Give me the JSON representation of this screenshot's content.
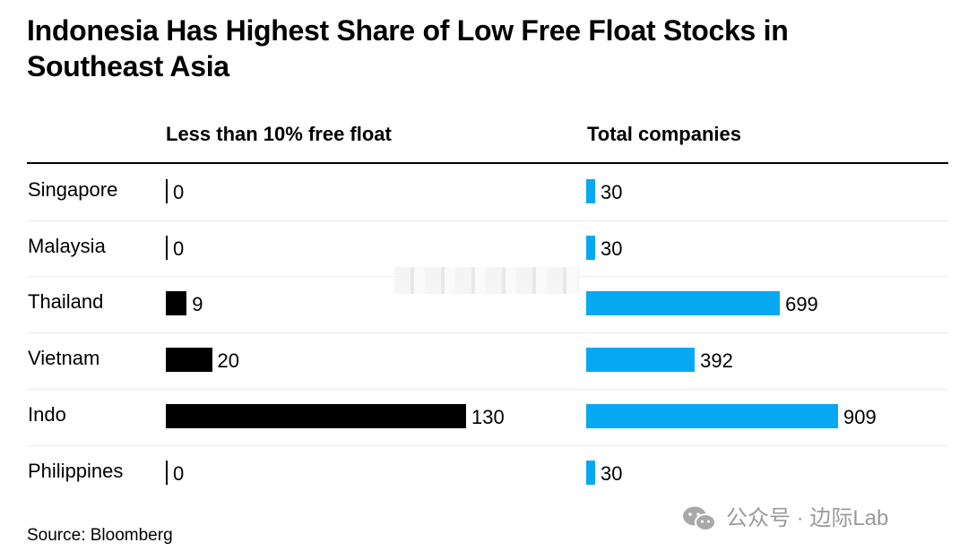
{
  "chart_data": {
    "type": "bar",
    "title": "Indonesia Has Highest Share of Low Free Float Stocks in Southeast Asia",
    "categories": [
      "Singapore",
      "Malaysia",
      "Thailand",
      "Vietnam",
      "Indo",
      "Philippines"
    ],
    "series": [
      {
        "name": "Less than 10% free float",
        "values": [
          0,
          0,
          9,
          20,
          130,
          0
        ],
        "color": "#000000"
      },
      {
        "name": "Total companies",
        "values": [
          30,
          30,
          699,
          392,
          909,
          30
        ],
        "color": "#06a8f2"
      }
    ],
    "source": "Source: Bloomberg"
  },
  "watermark": {
    "text": "公众号 · 边际Lab"
  }
}
